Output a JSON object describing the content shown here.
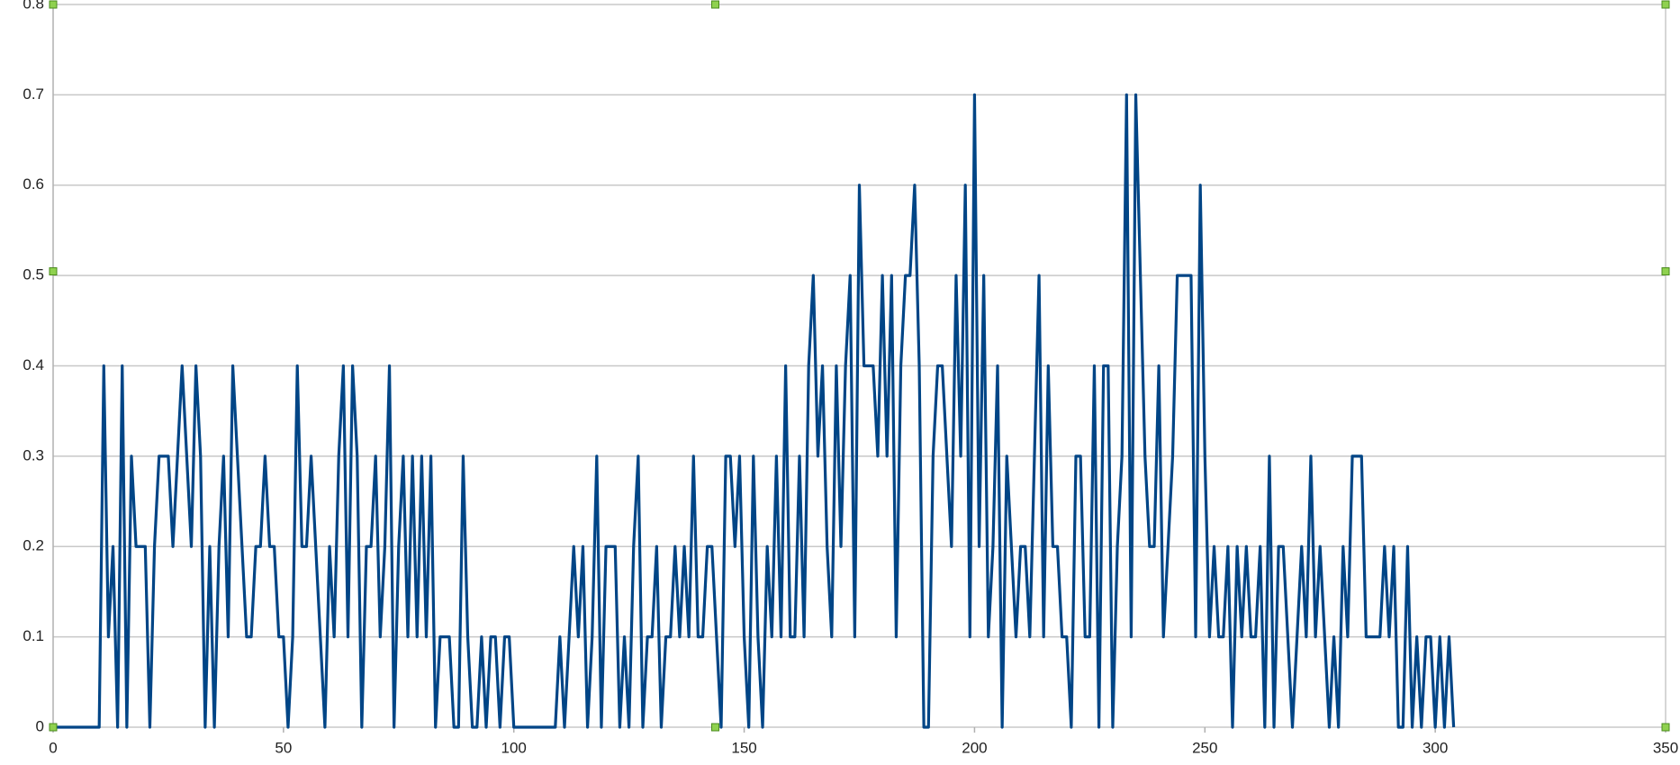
{
  "chart_data": {
    "type": "line",
    "x": [
      0,
      1,
      2,
      3,
      4,
      5,
      6,
      7,
      8,
      9,
      10,
      11,
      12,
      13,
      14,
      15,
      16,
      17,
      18,
      19,
      20,
      21,
      22,
      23,
      24,
      25,
      26,
      27,
      28,
      29,
      30,
      31,
      32,
      33,
      34,
      35,
      36,
      37,
      38,
      39,
      40,
      41,
      42,
      43,
      44,
      45,
      46,
      47,
      48,
      49,
      50,
      51,
      52,
      53,
      54,
      55,
      56,
      57,
      58,
      59,
      60,
      61,
      62,
      63,
      64,
      65,
      66,
      67,
      68,
      69,
      70,
      71,
      72,
      73,
      74,
      75,
      76,
      77,
      78,
      79,
      80,
      81,
      82,
      83,
      84,
      85,
      86,
      87,
      88,
      89,
      90,
      91,
      92,
      93,
      94,
      95,
      96,
      97,
      98,
      99,
      100,
      101,
      102,
      103,
      104,
      105,
      106,
      107,
      108,
      109,
      110,
      111,
      112,
      113,
      114,
      115,
      116,
      117,
      118,
      119,
      120,
      121,
      122,
      123,
      124,
      125,
      126,
      127,
      128,
      129,
      130,
      131,
      132,
      133,
      134,
      135,
      136,
      137,
      138,
      139,
      140,
      141,
      142,
      143,
      144,
      145,
      146,
      147,
      148,
      149,
      150,
      151,
      152,
      153,
      154,
      155,
      156,
      157,
      158,
      159,
      160,
      161,
      162,
      163,
      164,
      165,
      166,
      167,
      168,
      169,
      170,
      171,
      172,
      173,
      174,
      175,
      176,
      177,
      178,
      179,
      180,
      181,
      182,
      183,
      184,
      185,
      186,
      187,
      188,
      189,
      190,
      191,
      192,
      193,
      194,
      195,
      196,
      197,
      198,
      199,
      200,
      201,
      202,
      203,
      204,
      205,
      206,
      207,
      208,
      209,
      210,
      211,
      212,
      213,
      214,
      215,
      216,
      217,
      218,
      219,
      220,
      221,
      222,
      223,
      224,
      225,
      226,
      227,
      228,
      229,
      230,
      231,
      232,
      233,
      234,
      235,
      236,
      237,
      238,
      239,
      240,
      241,
      242,
      243,
      244,
      245,
      246,
      247,
      248,
      249,
      250,
      251,
      252,
      253,
      254,
      255,
      256,
      257,
      258,
      259,
      260,
      261,
      262,
      263,
      264,
      265,
      266,
      267,
      268,
      269,
      270,
      271,
      272,
      273,
      274,
      275,
      276,
      277,
      278,
      279,
      280,
      281,
      282,
      283,
      284,
      285,
      286,
      287,
      288,
      289,
      290,
      291,
      292,
      293,
      294,
      295,
      296,
      297,
      298,
      299,
      300,
      301,
      302,
      303,
      304
    ],
    "series": [
      {
        "color": "#004586",
        "values": [
          0,
          0,
          0,
          0,
          0,
          0,
          0,
          0,
          0,
          0,
          0,
          0.4,
          0.1,
          0.2,
          0,
          0.4,
          0,
          0.3,
          0.2,
          0.2,
          0.2,
          0,
          0.2,
          0.3,
          0.3,
          0.3,
          0.2,
          0.3,
          0.4,
          0.3,
          0.2,
          0.4,
          0.3,
          0,
          0.2,
          0,
          0.2,
          0.3,
          0.1,
          0.4,
          0.3,
          0.2,
          0.1,
          0.1,
          0.2,
          0.2,
          0.3,
          0.2,
          0.2,
          0.1,
          0.1,
          0,
          0.1,
          0.4,
          0.2,
          0.2,
          0.3,
          0.2,
          0.1,
          0,
          0.2,
          0.1,
          0.3,
          0.4,
          0.1,
          0.4,
          0.3,
          0,
          0.2,
          0.2,
          0.3,
          0.1,
          0.2,
          0.4,
          0,
          0.2,
          0.3,
          0.1,
          0.3,
          0.1,
          0.3,
          0.1,
          0.3,
          0,
          0.1,
          0.1,
          0.1,
          0,
          0,
          0.3,
          0.1,
          0,
          0,
          0.1,
          0,
          0.1,
          0.1,
          0,
          0.1,
          0.1,
          0,
          0,
          0,
          0,
          0,
          0,
          0,
          0,
          0,
          0,
          0.1,
          0,
          0.1,
          0.2,
          0.1,
          0.2,
          0,
          0.1,
          0.3,
          0,
          0.2,
          0.2,
          0.2,
          0,
          0.1,
          0,
          0.2,
          0.3,
          0,
          0.1,
          0.1,
          0.2,
          0,
          0.1,
          0.1,
          0.2,
          0.1,
          0.2,
          0.1,
          0.3,
          0.1,
          0.1,
          0.2,
          0.2,
          0.1,
          0,
          0.3,
          0.3,
          0.2,
          0.3,
          0.1,
          0,
          0.3,
          0.1,
          0,
          0.2,
          0.1,
          0.3,
          0.1,
          0.4,
          0.1,
          0.1,
          0.3,
          0.1,
          0.4,
          0.5,
          0.3,
          0.4,
          0.2,
          0.1,
          0.4,
          0.2,
          0.4,
          0.5,
          0.1,
          0.6,
          0.4,
          0.4,
          0.4,
          0.3,
          0.5,
          0.3,
          0.5,
          0.1,
          0.4,
          0.5,
          0.5,
          0.6,
          0.4,
          0,
          0,
          0.3,
          0.4,
          0.4,
          0.3,
          0.2,
          0.5,
          0.3,
          0.6,
          0.1,
          0.7,
          0.2,
          0.5,
          0.1,
          0.2,
          0.4,
          0,
          0.3,
          0.2,
          0.1,
          0.2,
          0.2,
          0.1,
          0.3,
          0.5,
          0.1,
          0.4,
          0.2,
          0.2,
          0.1,
          0.1,
          0,
          0.3,
          0.3,
          0.1,
          0.1,
          0.4,
          0,
          0.4,
          0.4,
          0,
          0.2,
          0.3,
          0.7,
          0.1,
          0.7,
          0.5,
          0.3,
          0.2,
          0.2,
          0.4,
          0.1,
          0.2,
          0.3,
          0.5,
          0.5,
          0.5,
          0.5,
          0.1,
          0.6,
          0.3,
          0.1,
          0.2,
          0.1,
          0.1,
          0.2,
          0,
          0.2,
          0.1,
          0.2,
          0.1,
          0.1,
          0.2,
          0,
          0.3,
          0,
          0.2,
          0.2,
          0.1,
          0,
          0.1,
          0.2,
          0.1,
          0.3,
          0.1,
          0.2,
          0.1,
          0,
          0.1,
          0,
          0.2,
          0.1,
          0.3,
          0.3,
          0.3,
          0.1,
          0.1,
          0.1,
          0.1,
          0.2,
          0.1,
          0.2,
          0,
          0,
          0.2,
          0,
          0.1,
          0,
          0.1,
          0.1,
          0,
          0.1,
          0,
          0.1,
          0
        ]
      }
    ],
    "xlim": [
      0,
      350
    ],
    "xticks": [
      0,
      50,
      100,
      150,
      200,
      250,
      300,
      350
    ],
    "ylim": [
      0,
      0.8
    ],
    "yticks": [
      0,
      0.1,
      0.2,
      0.3,
      0.4,
      0.5,
      0.6,
      0.7,
      0.8
    ],
    "grid": true
  }
}
